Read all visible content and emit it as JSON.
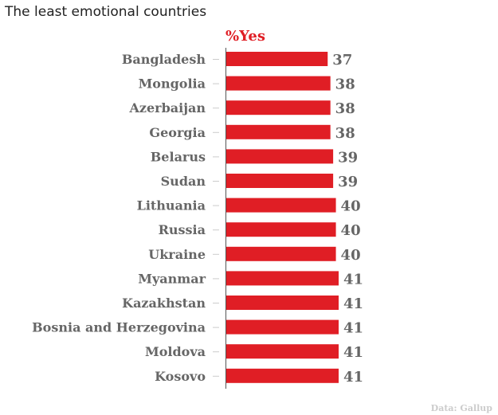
{
  "chart_data": {
    "type": "bar",
    "orientation": "horizontal",
    "title": "The least emotional countries",
    "series_label": "%Yes",
    "source": "Data: Gallup",
    "categories": [
      "Bangladesh",
      "Mongolia",
      "Azerbaijan",
      "Georgia",
      "Belarus",
      "Sudan",
      "Lithuania",
      "Russia",
      "Ukraine",
      "Myanmar",
      "Kazakhstan",
      "Bosnia and Herzegovina",
      "Moldova",
      "Kosovo"
    ],
    "values": [
      37,
      38,
      38,
      38,
      39,
      39,
      40,
      40,
      40,
      41,
      41,
      41,
      41,
      41
    ],
    "xlim": [
      0,
      41
    ],
    "grid": false,
    "colors": {
      "bar": "#e01e25",
      "label": "#666666",
      "header": "#e01e25",
      "source": "#cccccc"
    }
  }
}
